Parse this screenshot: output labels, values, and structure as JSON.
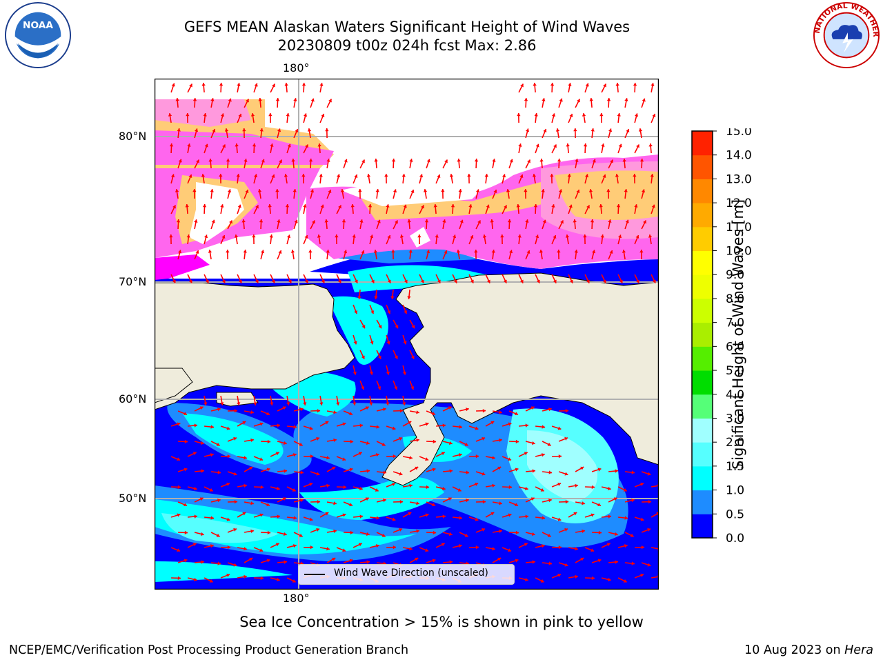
{
  "header": {
    "title_line1": "GEFS MEAN Alaskan Waters Significant Height of Wind Waves",
    "title_line2": "20230809 t00z 024h fcst   Max: 2.86",
    "noaa_logo_icon": "noaa-logo-icon",
    "nws_logo_icon": "nws-logo-icon",
    "noaa_logo_text": "NOAA",
    "nws_logo_text": "NATIONAL WEATHER SERVICE"
  },
  "map": {
    "lon_label_top": "180°",
    "lon_label_bottom": "180°",
    "lat_labels": [
      "80°N",
      "70°N",
      "60°N",
      "50°N"
    ],
    "legend_label": "Wind Wave Direction (unscaled)",
    "colors": {
      "land": "#efecdc",
      "arrow": "#ff0000",
      "grid": "#b0b0b0"
    }
  },
  "chart_data": {
    "type": "heatmap",
    "title": "GEFS MEAN Alaskan Waters Significant Height of Wind Waves",
    "subtitle": "20230809 t00z 024h fcst   Max: 2.86",
    "max_value": 2.86,
    "colorbar": {
      "label": "Significant Height of Wind Waves [m]",
      "ticks": [
        "0.0",
        "0.5",
        "1.0",
        "1.5",
        "2.0",
        "3.0",
        "4.0",
        "5.0",
        "6.0",
        "7.0",
        "8.0",
        "9.0",
        "10.0",
        "11.0",
        "12.0",
        "13.0",
        "14.0",
        "15.0"
      ],
      "colors": [
        "#0000ff",
        "#1e8cff",
        "#00ffff",
        "#56ffff",
        "#a0ffff",
        "#55ff78",
        "#00dd00",
        "#55ee00",
        "#aaee00",
        "#ccff00",
        "#eeff00",
        "#ffff00",
        "#ffcc00",
        "#ffaa00",
        "#ff8800",
        "#ff5500",
        "#ff2200"
      ]
    },
    "sea_ice_colors": [
      "#ff00ff",
      "#ff66ee",
      "#ff99dd",
      "#ffcc77",
      "#ffff66"
    ]
  },
  "footer": {
    "note": "Sea Ice Concentration > 15% is shown in pink to yellow",
    "left": "NCEP/EMC/Verification Post Processing Product Generation Branch",
    "right_prefix": "10 Aug 2023 on ",
    "right_machine": "Hera"
  }
}
